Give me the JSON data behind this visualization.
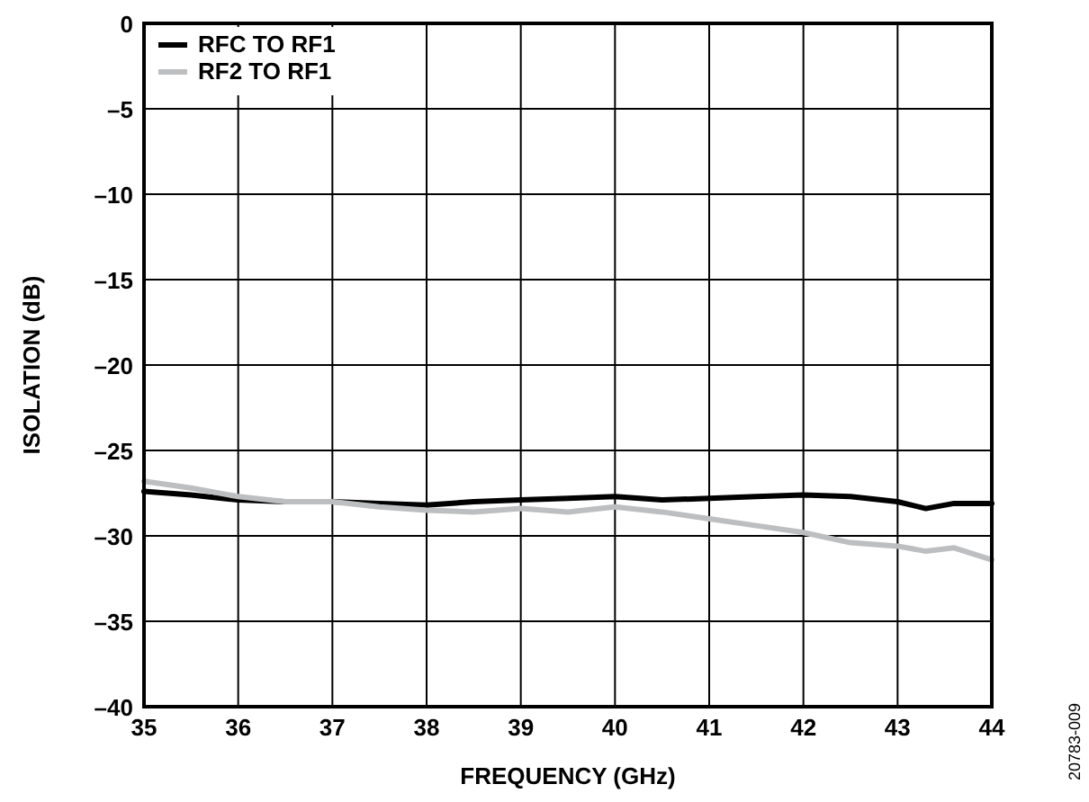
{
  "chart_data": {
    "type": "line",
    "xlabel": "FREQUENCY (GHz)",
    "ylabel": "ISOLATION (dB)",
    "xlim": [
      35,
      44
    ],
    "ylim": [
      -40,
      0
    ],
    "xticks": [
      35,
      36,
      37,
      38,
      39,
      40,
      41,
      42,
      43,
      44
    ],
    "yticks": [
      0,
      {
        "value": -5,
        "label": "–5"
      },
      {
        "value": -10,
        "label": "–10"
      },
      {
        "value": -15,
        "label": "–15"
      },
      {
        "value": -20,
        "label": "–20"
      },
      {
        "value": -25,
        "label": "–25"
      },
      {
        "value": -30,
        "label": "–30"
      },
      {
        "value": -35,
        "label": "–35"
      },
      {
        "value": -40,
        "label": "–40"
      }
    ],
    "grid": true,
    "legend": "top left",
    "annotations": [
      "20783-009"
    ],
    "x": [
      35,
      35.5,
      36,
      36.5,
      37,
      37.5,
      38,
      38.5,
      39,
      39.5,
      40,
      40.5,
      41,
      41.5,
      42,
      42.5,
      43,
      43.3,
      43.6,
      44
    ],
    "series": [
      {
        "name": "RFC TO RF1",
        "color": "#000000",
        "values": [
          -27.4,
          -27.6,
          -27.9,
          -28.0,
          -28.0,
          -28.1,
          -28.2,
          -28.0,
          -27.9,
          -27.8,
          -27.7,
          -27.9,
          -27.8,
          -27.7,
          -27.6,
          -27.7,
          -28.0,
          -28.4,
          -28.1,
          -28.1
        ]
      },
      {
        "name": "RF2 TO RF1",
        "color": "#bcbec0",
        "values": [
          -26.8,
          -27.2,
          -27.7,
          -28.0,
          -28.0,
          -28.3,
          -28.5,
          -28.6,
          -28.4,
          -28.6,
          -28.3,
          -28.6,
          -29.0,
          -29.4,
          -29.8,
          -30.4,
          -30.6,
          -30.9,
          -30.7,
          -31.4
        ]
      }
    ]
  }
}
